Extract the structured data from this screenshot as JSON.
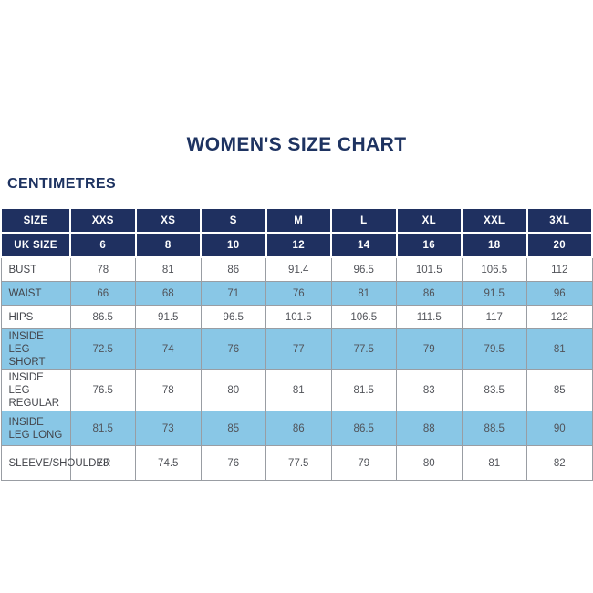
{
  "page": {
    "title": "WOMEN'S SIZE CHART",
    "unit_label": "CENTIMETRES"
  },
  "colors": {
    "header_navy": "#1F3060",
    "row_light_blue": "#89C7E6",
    "header_text": "#FFFFFF",
    "body_text": "#515359",
    "title_navy": "#1E3361",
    "border_gray": "#999DA3"
  },
  "chart_data": {
    "type": "table",
    "title": "WOMEN'S SIZE CHART",
    "unit": "CENTIMETRES",
    "header_rows": [
      {
        "label": "SIZE",
        "values": [
          "XXS",
          "XS",
          "S",
          "M",
          "L",
          "XL",
          "XXL",
          "3XL"
        ]
      },
      {
        "label": "UK SIZE",
        "values": [
          "6",
          "8",
          "10",
          "12",
          "14",
          "16",
          "18",
          "20"
        ]
      }
    ],
    "body_rows": [
      {
        "label": "BUST",
        "values": [
          "78",
          "81",
          "86",
          "91.4",
          "96.5",
          "101.5",
          "106.5",
          "112"
        ]
      },
      {
        "label": "WAIST",
        "values": [
          "66",
          "68",
          "71",
          "76",
          "81",
          "86",
          "91.5",
          "96"
        ]
      },
      {
        "label": "HIPS",
        "values": [
          "86.5",
          "91.5",
          "96.5",
          "101.5",
          "106.5",
          "111.5",
          "117",
          "122"
        ]
      },
      {
        "label": "INSIDE LEG SHORT",
        "values": [
          "72.5",
          "74",
          "76",
          "77",
          "77.5",
          "79",
          "79.5",
          "81"
        ]
      },
      {
        "label": "INSIDE LEG REGULAR",
        "values": [
          "76.5",
          "78",
          "80",
          "81",
          "81.5",
          "83",
          "83.5",
          "85"
        ]
      },
      {
        "label": "INSIDE LEG LONG",
        "values": [
          "81.5",
          "73",
          "85",
          "86",
          "86.5",
          "88",
          "88.5",
          "90"
        ]
      },
      {
        "label": "SLEEVE/SHOULDER",
        "values": [
          "73",
          "74.5",
          "76",
          "77.5",
          "79",
          "80",
          "81",
          "82"
        ]
      }
    ]
  }
}
